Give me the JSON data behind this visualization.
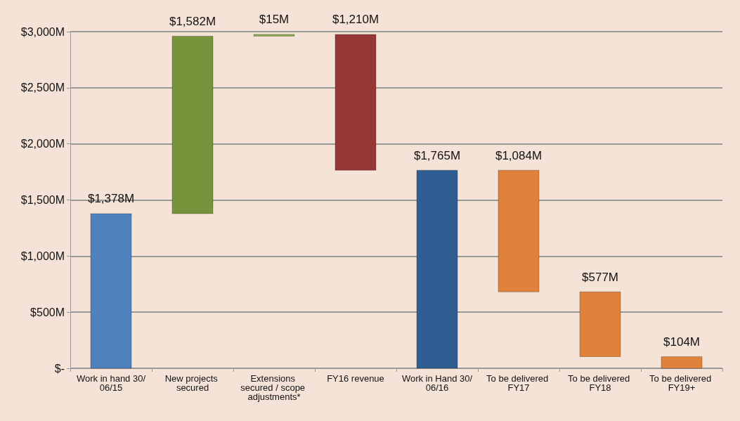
{
  "chart_data": {
    "type": "bar",
    "categories": [
      "Work in hand 30/06/15",
      "New projects secured",
      "Extensions secured / scope adjustments*",
      "FY16 revenue",
      "Work in Hand 30/06/16",
      "To be delivered FY17",
      "To be delivered FY18",
      "To be delivered FY19+"
    ],
    "values": [
      1378,
      1582,
      15,
      1210,
      1765,
      1084,
      577,
      104
    ],
    "base": [
      0,
      1378,
      2960,
      1765,
      0,
      681,
      104,
      0
    ],
    "colors": [
      "#4f81bd",
      "#77933c",
      "#8db050",
      "#953735",
      "#2f5e93",
      "#e0823c",
      "#e0823c",
      "#e0823c"
    ],
    "value_labels": [
      "$1,378M",
      "$1,582M",
      "$15M",
      "$1,210M",
      "$1,765M",
      "$1,084M",
      "$577M",
      "$104M"
    ],
    "ylim": [
      0,
      3000
    ],
    "yticks": [
      {
        "value": 0,
        "label": "$-"
      },
      {
        "value": 500,
        "label": "$500M"
      },
      {
        "value": 1000,
        "label": "$1,000M"
      },
      {
        "value": 1500,
        "label": "$1,500M"
      },
      {
        "value": 2000,
        "label": "$2,000M"
      },
      {
        "value": 2500,
        "label": "$2,500M"
      },
      {
        "value": 3000,
        "label": "$3,000M"
      }
    ],
    "grid": "y"
  }
}
